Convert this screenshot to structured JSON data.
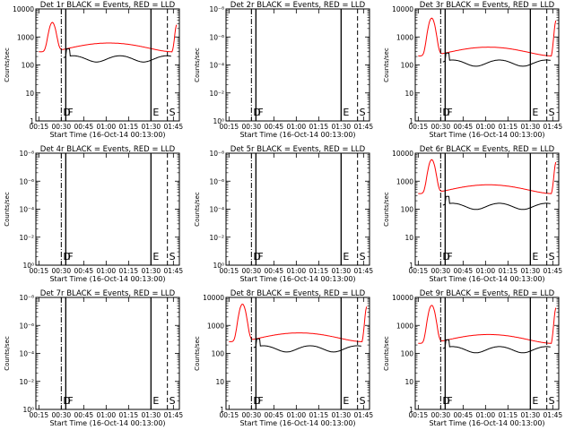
{
  "figure": {
    "xlabel": "Start Time (16-Oct-14 00:13:00)",
    "ylabel": "Counts/sec",
    "x_ticks": [
      "00:15",
      "00:30",
      "00:45",
      "01:00",
      "01:15",
      "01:30",
      "01:45"
    ],
    "colors": {
      "events": "#000000",
      "lld": "#ff0000",
      "axes": "#000000",
      "background": "#ffffff"
    }
  },
  "chart_data": [
    {
      "type": "line",
      "title": "Det 1r BLACK = Events, RED = LLD",
      "xlabel": "Start Time (16-Oct-14 00:13:00)",
      "ylabel": "Counts/sec",
      "y_scale": "log",
      "ylim": [
        1,
        10000
      ],
      "y_ticks": [
        "1",
        "10",
        "100",
        "1000",
        "10000"
      ],
      "has_data": true,
      "peak": 3000,
      "plateau": 450,
      "events_level": 170,
      "markers": [
        {
          "x": "00:30",
          "label": "D",
          "style": "dashdot"
        },
        {
          "x": "00:33",
          "label": "F",
          "style": "solid"
        },
        {
          "x": "01:30",
          "label": "E",
          "style": "solid"
        },
        {
          "x": "01:41",
          "label": "S",
          "style": "dashed"
        }
      ]
    },
    {
      "type": "line",
      "title": "Det 2r BLACK = Events, RED = LLD",
      "xlabel": "Start Time (16-Oct-14 00:13:00)",
      "ylabel": "Counts/sec",
      "y_scale": "log",
      "ylim": [
        1,
        10000000000
      ],
      "y_ticks": [
        "10⁰",
        "10⁻²",
        "10⁻⁴",
        "10⁻⁶",
        "10⁻⁸"
      ],
      "has_data": false,
      "markers": [
        {
          "x": "00:30",
          "label": "D",
          "style": "dashdot"
        },
        {
          "x": "00:33",
          "label": "F",
          "style": "solid"
        },
        {
          "x": "01:30",
          "label": "E",
          "style": "solid"
        },
        {
          "x": "01:41",
          "label": "S",
          "style": "dashed"
        }
      ]
    },
    {
      "type": "line",
      "title": "Det 3r BLACK = Events, RED = LLD",
      "xlabel": "Start Time (16-Oct-14 00:13:00)",
      "ylabel": "Counts/sec",
      "y_scale": "log",
      "ylim": [
        1,
        10000
      ],
      "y_ticks": [
        "1",
        "10",
        "100",
        "1000",
        "10000"
      ],
      "has_data": true,
      "peak": 4500,
      "plateau": 320,
      "events_level": 120,
      "markers": [
        {
          "x": "00:30",
          "label": "D",
          "style": "dashdot"
        },
        {
          "x": "00:33",
          "label": "F",
          "style": "solid"
        },
        {
          "x": "01:30",
          "label": "E",
          "style": "solid"
        },
        {
          "x": "01:41",
          "label": "S",
          "style": "dashed"
        }
      ]
    },
    {
      "type": "line",
      "title": "Det 4r BLACK = Events, RED = LLD",
      "xlabel": "Start Time (16-Oct-14 00:13:00)",
      "ylabel": "Counts/sec",
      "y_scale": "log",
      "ylim": [
        1,
        10000000000
      ],
      "y_ticks": [
        "10⁰",
        "10⁻²",
        "10⁻⁴",
        "10⁻⁶",
        "10⁻⁸"
      ],
      "has_data": false,
      "markers": [
        {
          "x": "00:30",
          "label": "D",
          "style": "dashdot"
        },
        {
          "x": "00:33",
          "label": "F",
          "style": "solid"
        },
        {
          "x": "01:30",
          "label": "E",
          "style": "solid"
        },
        {
          "x": "01:41",
          "label": "S",
          "style": "dashed"
        }
      ]
    },
    {
      "type": "line",
      "title": "Det 5r BLACK = Events, RED = LLD",
      "xlabel": "Start Time (16-Oct-14 00:13:00)",
      "ylabel": "Counts/sec",
      "y_scale": "log",
      "ylim": [
        1,
        10000000000
      ],
      "y_ticks": [
        "10⁰",
        "10⁻²",
        "10⁻⁴",
        "10⁻⁶",
        "10⁻⁸"
      ],
      "has_data": false,
      "markers": [
        {
          "x": "00:30",
          "label": "D",
          "style": "dashdot"
        },
        {
          "x": "00:33",
          "label": "F",
          "style": "solid"
        },
        {
          "x": "01:30",
          "label": "E",
          "style": "solid"
        },
        {
          "x": "01:41",
          "label": "S",
          "style": "dashed"
        }
      ]
    },
    {
      "type": "line",
      "title": "Det 6r BLACK = Events, RED = LLD",
      "xlabel": "Start Time (16-Oct-14 00:13:00)",
      "ylabel": "Counts/sec",
      "y_scale": "log",
      "ylim": [
        1,
        10000
      ],
      "y_ticks": [
        "1",
        "10",
        "100",
        "1000",
        "10000"
      ],
      "has_data": true,
      "peak": 5500,
      "plateau": 550,
      "events_level": 130,
      "markers": [
        {
          "x": "00:30",
          "label": "D",
          "style": "dashdot"
        },
        {
          "x": "00:33",
          "label": "F",
          "style": "solid"
        },
        {
          "x": "01:30",
          "label": "E",
          "style": "solid"
        },
        {
          "x": "01:41",
          "label": "S",
          "style": "dashed"
        }
      ]
    },
    {
      "type": "line",
      "title": "Det 7r BLACK = Events, RED = LLD",
      "xlabel": "Start Time (16-Oct-14 00:13:00)",
      "ylabel": "Counts/sec",
      "y_scale": "log",
      "ylim": [
        1,
        10000000000
      ],
      "y_ticks": [
        "10⁰",
        "10⁻²",
        "10⁻⁴",
        "10⁻⁶",
        "10⁻⁸"
      ],
      "has_data": false,
      "markers": [
        {
          "x": "00:30",
          "label": "D",
          "style": "dashdot"
        },
        {
          "x": "00:33",
          "label": "F",
          "style": "solid"
        },
        {
          "x": "01:30",
          "label": "E",
          "style": "solid"
        },
        {
          "x": "01:41",
          "label": "S",
          "style": "dashed"
        }
      ]
    },
    {
      "type": "line",
      "title": "Det 8r BLACK = Events, RED = LLD",
      "xlabel": "Start Time (16-Oct-14 00:13:00)",
      "ylabel": "Counts/sec",
      "y_scale": "log",
      "ylim": [
        1,
        10000
      ],
      "y_ticks": [
        "1",
        "10",
        "100",
        "1000",
        "10000"
      ],
      "has_data": true,
      "peak": 5500,
      "plateau": 400,
      "events_level": 150,
      "markers": [
        {
          "x": "00:30",
          "label": "D",
          "style": "dashdot"
        },
        {
          "x": "00:33",
          "label": "F",
          "style": "solid"
        },
        {
          "x": "01:30",
          "label": "E",
          "style": "solid"
        },
        {
          "x": "01:41",
          "label": "S",
          "style": "dashed"
        }
      ]
    },
    {
      "type": "line",
      "title": "Det 9r BLACK = Events, RED = LLD",
      "xlabel": "Start Time (16-Oct-14 00:13:00)",
      "ylabel": "Counts/sec",
      "y_scale": "log",
      "ylim": [
        1,
        10000
      ],
      "y_ticks": [
        "1",
        "10",
        "100",
        "1000",
        "10000"
      ],
      "has_data": true,
      "peak": 5000,
      "plateau": 350,
      "events_level": 140,
      "markers": [
        {
          "x": "00:30",
          "label": "D",
          "style": "dashdot"
        },
        {
          "x": "00:33",
          "label": "F",
          "style": "solid"
        },
        {
          "x": "01:30",
          "label": "E",
          "style": "solid"
        },
        {
          "x": "01:41",
          "label": "S",
          "style": "dashed"
        }
      ]
    }
  ]
}
